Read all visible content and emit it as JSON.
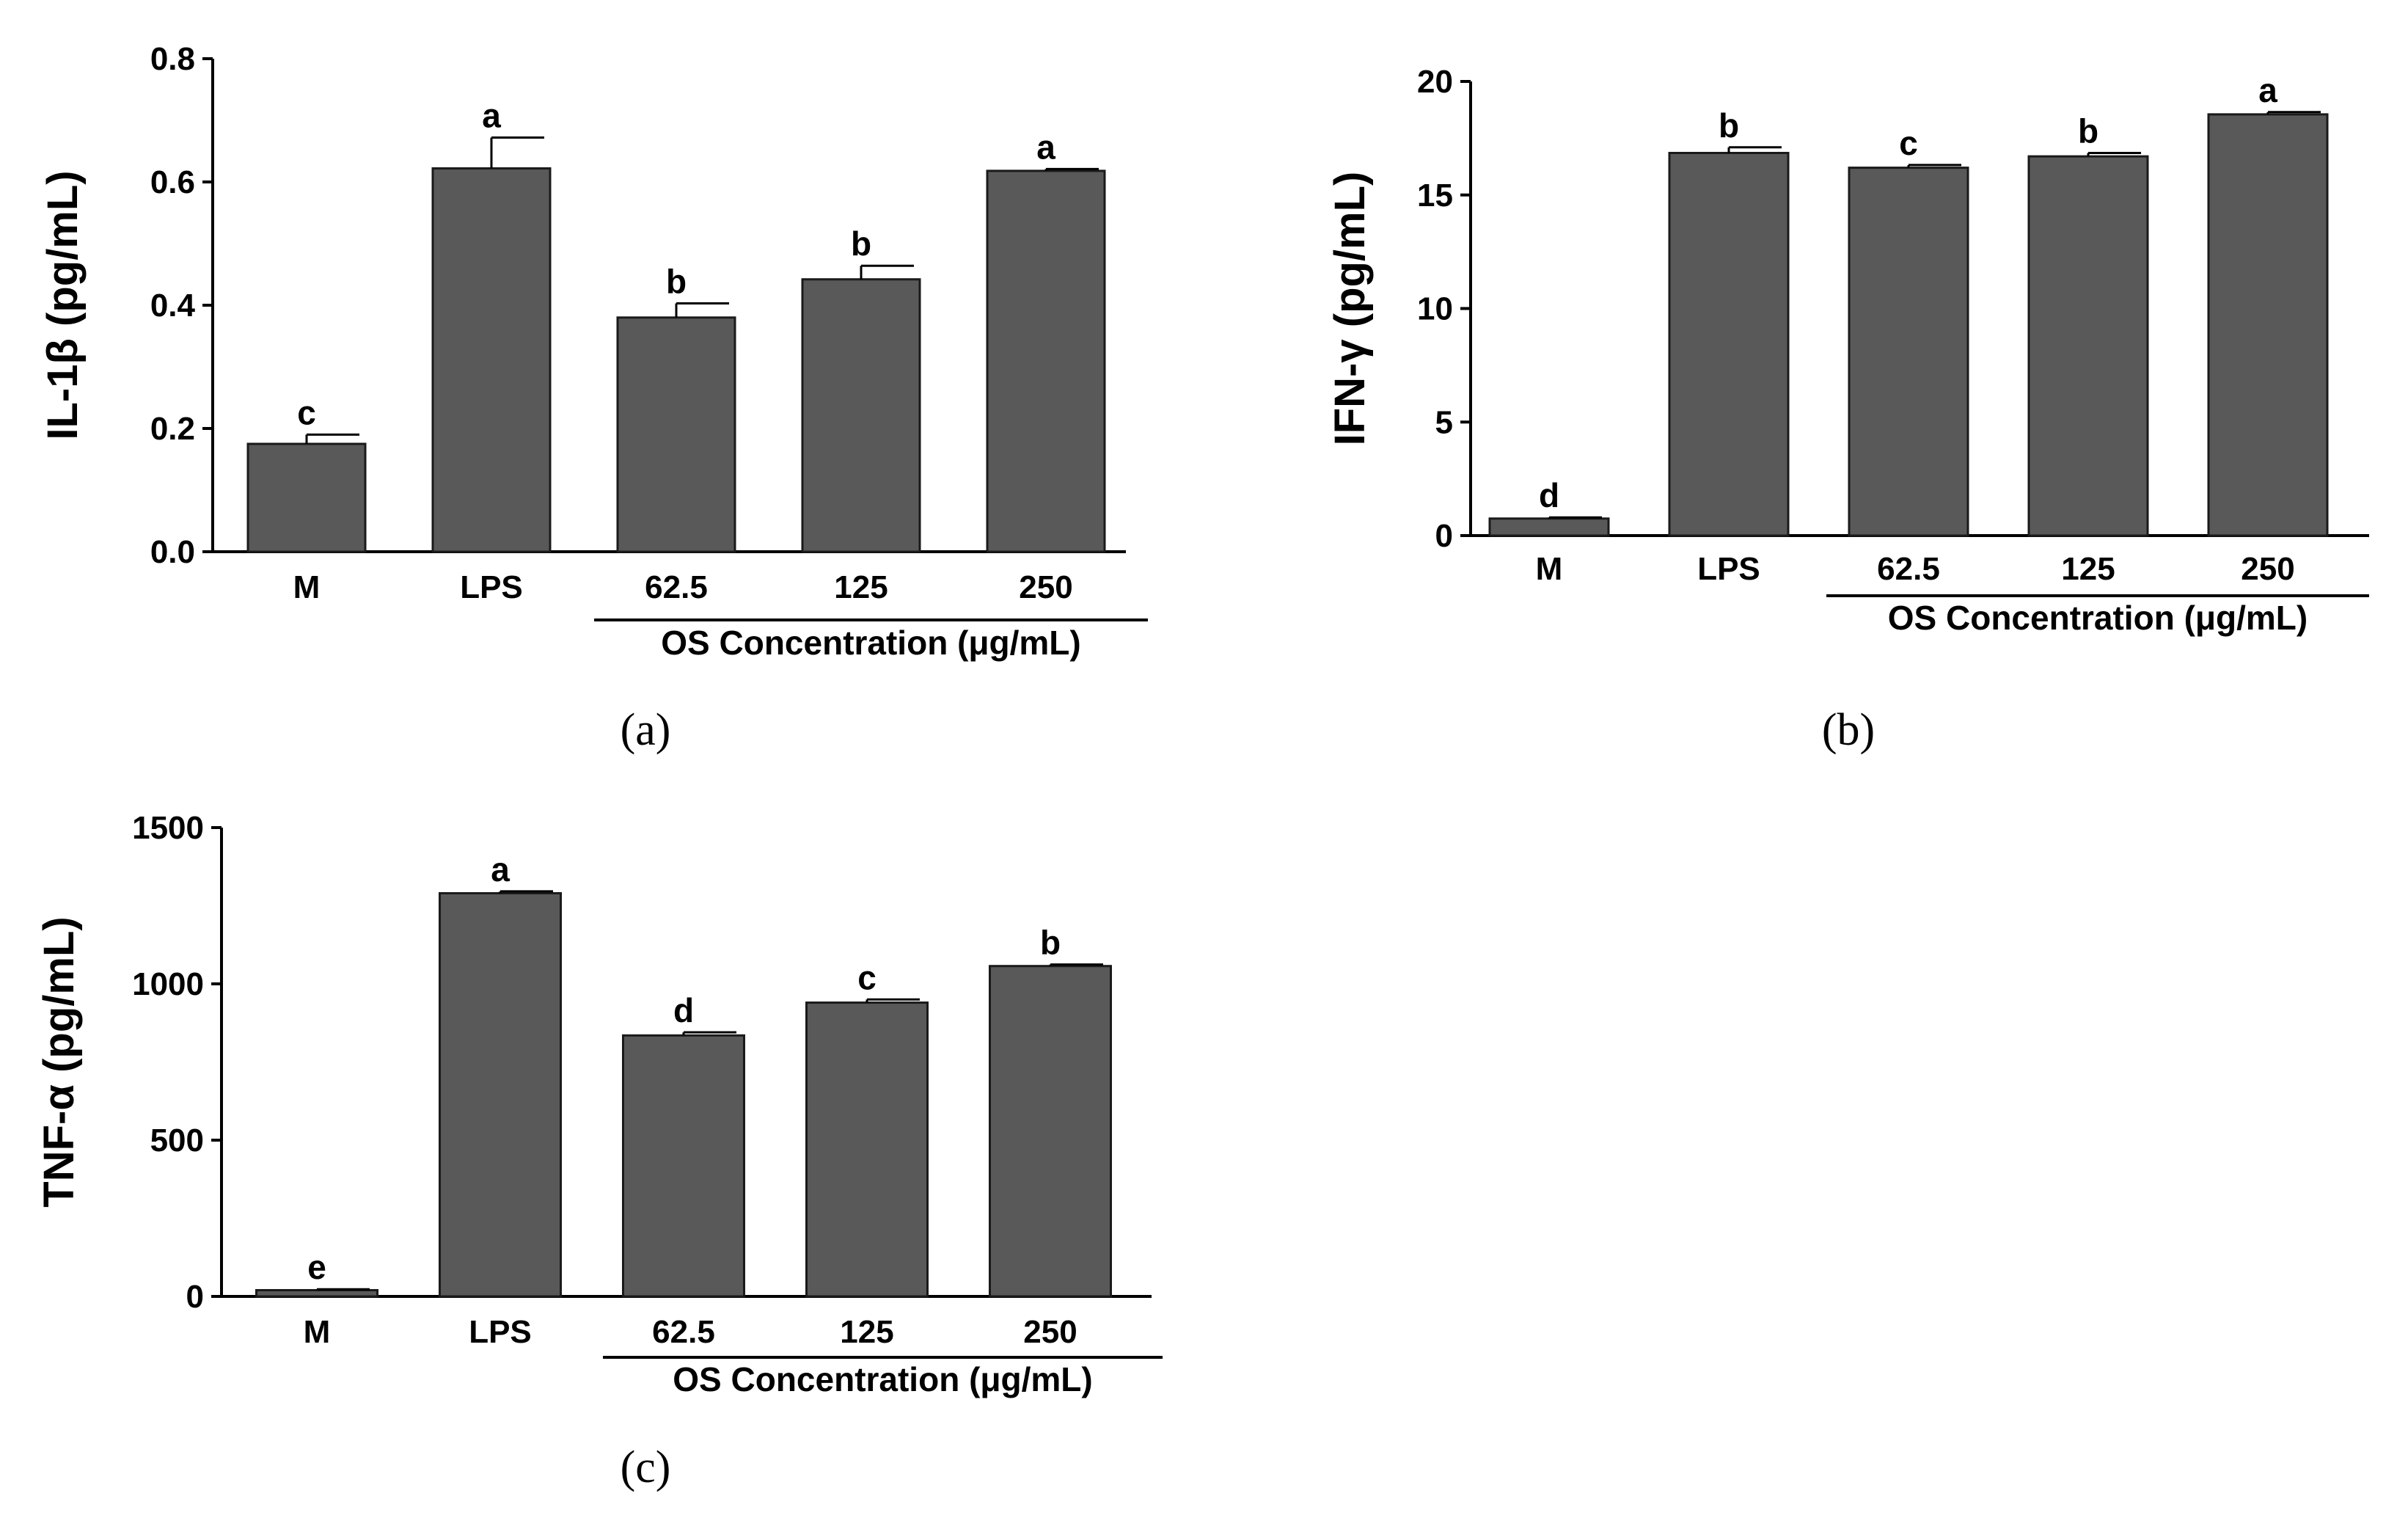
{
  "chart_data": [
    {
      "id": "a",
      "type": "bar",
      "panel_label": "(a)",
      "ylabel": "IL-1β (pg/mL)",
      "xlabel": "",
      "group_label": "OS Concentration (μg/mL)",
      "categories": [
        "M",
        "LPS",
        "62.5",
        "125",
        "250"
      ],
      "values": [
        0.175,
        0.622,
        0.38,
        0.442,
        0.618
      ],
      "errors": [
        0.015,
        0.05,
        0.023,
        0.022,
        0.003
      ],
      "significance": [
        "c",
        "a",
        "b",
        "b",
        "a"
      ],
      "ylim": [
        0,
        0.8
      ],
      "yticks": [
        0.0,
        0.2,
        0.4,
        0.6,
        0.8
      ],
      "ytick_labels": [
        "0.0",
        "0.2",
        "0.4",
        "0.6",
        "0.8"
      ]
    },
    {
      "id": "b",
      "type": "bar",
      "panel_label": "(b)",
      "ylabel": "IFN-γ (pg/mL)",
      "xlabel": "",
      "group_label": "OS Concentration (μg/mL)",
      "categories": [
        "M",
        "LPS",
        "62.5",
        "125",
        "250"
      ],
      "values": [
        0.75,
        16.85,
        16.2,
        16.7,
        18.55
      ],
      "errors": [
        0.05,
        0.25,
        0.12,
        0.15,
        0.1
      ],
      "significance": [
        "d",
        "b",
        "c",
        "b",
        "a"
      ],
      "ylim": [
        0,
        20
      ],
      "yticks": [
        0,
        5,
        10,
        15,
        20
      ],
      "ytick_labels": [
        "0",
        "5",
        "10",
        "15",
        "20"
      ]
    },
    {
      "id": "c",
      "type": "bar",
      "panel_label": "(c)",
      "ylabel": "TNF-α (pg/mL)",
      "xlabel": "",
      "group_label": "OS Concentration (μg/mL)",
      "categories": [
        "M",
        "LPS",
        "62.5",
        "125",
        "250"
      ],
      "values": [
        20,
        1290,
        835,
        940,
        1057
      ],
      "errors": [
        3,
        6,
        10,
        10,
        5
      ],
      "significance": [
        "e",
        "a",
        "d",
        "c",
        "b"
      ],
      "ylim": [
        0,
        1500
      ],
      "yticks": [
        0,
        500,
        1000,
        1500
      ],
      "ytick_labels": [
        "0",
        "500",
        "1000",
        "1500"
      ]
    }
  ]
}
